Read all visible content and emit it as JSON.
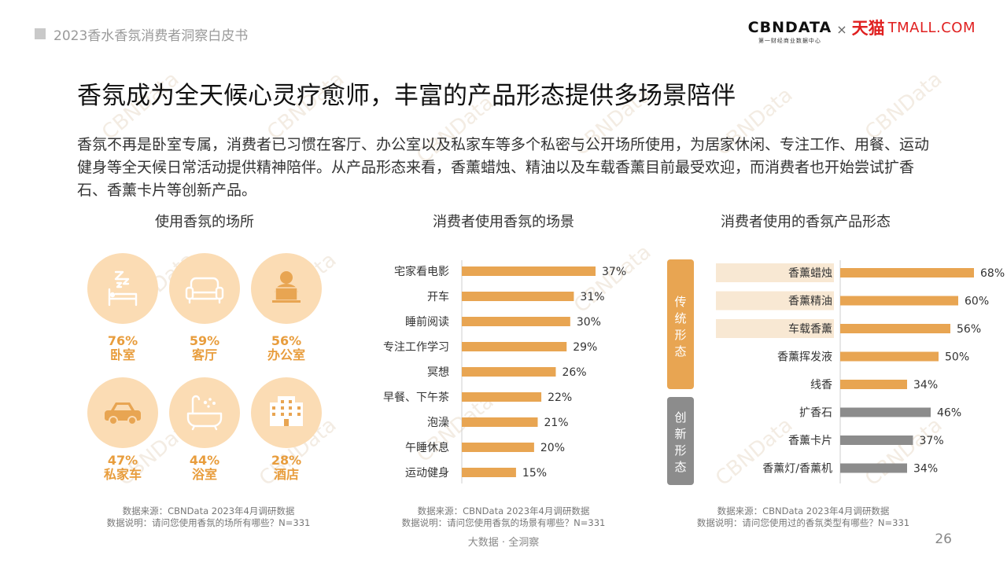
{
  "header": {
    "title": "2023香水香氛消费者洞察白皮书",
    "brand": {
      "cbn_logo": "CBNDATA",
      "cbn_sub": "第一财经商业数据中心",
      "times": "×",
      "tmall_cn": "天猫",
      "tmall_en": "TMALL.COM"
    }
  },
  "main_title": "香氛成为全天候心灵疗愈师，丰富的产品形态提供多场景陪伴",
  "intro": "香氛不再是卧室专属，消费者已习惯在客厅、办公室以及私家车等多个私密与公开场所使用，为居家休闲、专注工作、用餐、运动健身等全天候日常活动提供精神陪伴。从产品形态来看，香薰蜡烛、精油以及车载香薰目前最受欢迎，而消费者也开始尝试扩香石、香薰卡片等创新产品。",
  "places_title": "使用香氛的场所",
  "places": [
    {
      "pct": "76%",
      "label": "卧室",
      "icon": "bed-sleep-icon"
    },
    {
      "pct": "59%",
      "label": "客厅",
      "icon": "sofa-icon"
    },
    {
      "pct": "56%",
      "label": "办公室",
      "icon": "office-worker-icon"
    },
    {
      "pct": "47%",
      "label": "私家车",
      "icon": "car-icon"
    },
    {
      "pct": "44%",
      "label": "浴室",
      "icon": "bathtub-icon"
    },
    {
      "pct": "28%",
      "label": "酒店",
      "icon": "hotel-icon"
    }
  ],
  "places_source": {
    "line1": "数据来源：CBNData 2023年4月调研数据",
    "line2": "数据说明：请问您使用香氛的场所有哪些？N=331"
  },
  "scenes_title": "消费者使用香氛的场景",
  "scenes_source": {
    "line1": "数据来源：CBNData 2023年4月调研数据",
    "line2": "数据说明：请问您使用香氛的场景有哪些？N=331"
  },
  "forms_title": "消费者使用的香氛产品形态",
  "forms_source": {
    "line1": "数据来源：CBNData 2023年4月调研数据",
    "line2": "数据说明：请问您使用过的香氛类型有哪些？N=331"
  },
  "footer": {
    "slogan": "大数据 · 全洞察",
    "page": "26"
  },
  "watermark": "CBNData",
  "colors": {
    "orange": "#e8a552",
    "gray": "#8c8c8c",
    "accent": "#e89d3d",
    "circle": "#fbdcb4",
    "highlight": "#f8e8d3"
  },
  "chart_data": [
    {
      "type": "bar",
      "orientation": "horizontal",
      "title": "消费者使用香氛的场景",
      "categories": [
        "宅家看电影",
        "开车",
        "睡前阅读",
        "专注工作学习",
        "冥想",
        "早餐、下午茶",
        "泡澡",
        "午睡休息",
        "运动健身"
      ],
      "values": [
        37,
        31,
        30,
        29,
        26,
        22,
        21,
        20,
        15
      ],
      "value_labels": [
        "37%",
        "31%",
        "30%",
        "29%",
        "26%",
        "22%",
        "21%",
        "20%",
        "15%"
      ],
      "unit": "%",
      "grid": false
    },
    {
      "type": "bar",
      "orientation": "horizontal",
      "title": "消费者使用的香氛产品形态",
      "groups": [
        {
          "name": "传统形态",
          "categories": [
            "香薰蜡烛",
            "香薰精油",
            "车载香薰",
            "香薰挥发液",
            "线香"
          ],
          "values": [
            68,
            60,
            56,
            50,
            34
          ],
          "value_labels": [
            "68%",
            "60%",
            "56%",
            "50%",
            "34%"
          ],
          "highlighted": [
            "香薰蜡烛",
            "香薰精油",
            "车载香薰"
          ]
        },
        {
          "name": "创新形态",
          "categories": [
            "扩香石",
            "香薰卡片",
            "香薰灯/香薰机"
          ],
          "values": [
            46,
            37,
            34
          ],
          "value_labels": [
            "46%",
            "37%",
            "34%"
          ]
        }
      ],
      "unit": "%",
      "grid": false
    }
  ]
}
